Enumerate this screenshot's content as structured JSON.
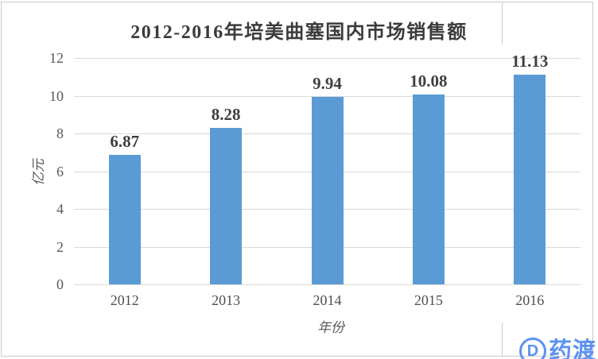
{
  "chart_data": {
    "type": "bar",
    "title": "2012-2016年培美曲塞国内市场销售额",
    "categories": [
      "2012",
      "2013",
      "2014",
      "2015",
      "2016"
    ],
    "values": [
      6.87,
      8.28,
      9.94,
      10.08,
      11.13
    ],
    "data_labels": [
      "6.87",
      "8.28",
      "9.94",
      "10.08",
      "11.13"
    ],
    "xlabel": "年份",
    "ylabel": "亿元",
    "ylim": [
      0,
      12
    ],
    "yticks": [
      0,
      2,
      4,
      6,
      8,
      10,
      12
    ],
    "grid": true,
    "legend": "none",
    "bar_color": "#5B9BD5",
    "grid_color": "#D9D9D9"
  },
  "watermark": {
    "logo_letter": "D",
    "text": "药渡",
    "color": "#5C92F0"
  },
  "colors": {
    "background": "#FFFFFF",
    "frame_border": "#CBCBCB",
    "title_text": "#3B3B3B",
    "tick_text": "#595959"
  }
}
